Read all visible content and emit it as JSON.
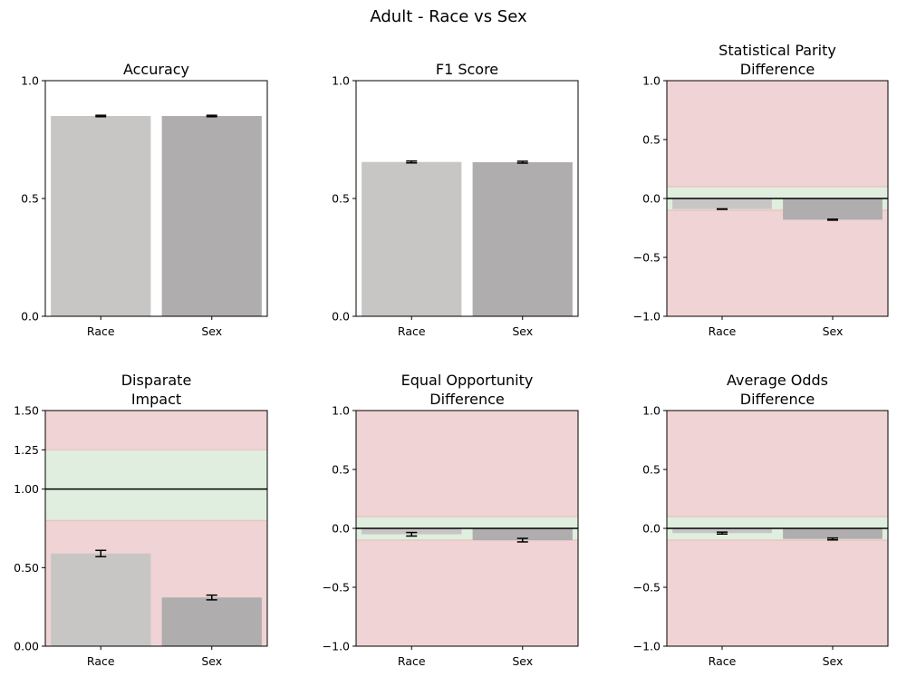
{
  "figure": {
    "title": "Adult - Race vs Sex"
  },
  "colors": {
    "bar_race": "#c8c6c4",
    "bar_sex": "#afadad",
    "fair_band": "#dfeede",
    "unfair_band": "#f0d3d4",
    "band_edge": "#e6c2bd"
  },
  "chart_data": [
    {
      "type": "bar",
      "title": "Accuracy",
      "categories": [
        "Race",
        "Sex"
      ],
      "values": [
        0.85,
        0.85
      ],
      "errors": [
        0.003,
        0.003
      ],
      "ylim": [
        0,
        1
      ],
      "yticks": [
        0,
        0.5,
        1
      ],
      "ytick_labels": [
        "0.0",
        "0.5",
        "1.0"
      ],
      "fair_band": null,
      "reference_line": null
    },
    {
      "type": "bar",
      "title": "F1 Score",
      "categories": [
        "Race",
        "Sex"
      ],
      "values": [
        0.655,
        0.654
      ],
      "errors": [
        0.004,
        0.004
      ],
      "ylim": [
        0,
        1
      ],
      "yticks": [
        0,
        0.5,
        1
      ],
      "ytick_labels": [
        "0.0",
        "0.5",
        "1.0"
      ],
      "fair_band": null,
      "reference_line": null
    },
    {
      "type": "bar",
      "title": "Statistical Parity\nDifference",
      "categories": [
        "Race",
        "Sex"
      ],
      "values": [
        -0.09,
        -0.18
      ],
      "errors": [
        0.002,
        0.004
      ],
      "ylim": [
        -1,
        1
      ],
      "yticks": [
        -1,
        -0.5,
        0,
        0.5,
        1
      ],
      "ytick_labels": [
        "−1.0",
        "−0.5",
        "0.0",
        "0.5",
        "1.0"
      ],
      "fair_band": [
        -0.1,
        0.1
      ],
      "reference_line": 0
    },
    {
      "type": "bar",
      "title": "Disparate\nImpact",
      "categories": [
        "Race",
        "Sex"
      ],
      "values": [
        0.59,
        0.31
      ],
      "errors": [
        0.02,
        0.015
      ],
      "ylim": [
        0,
        1.5
      ],
      "yticks": [
        0,
        0.5,
        1,
        1.25,
        1.5
      ],
      "ytick_labels": [
        "0.00",
        "0.50",
        "1.00",
        "1.25",
        "1.50"
      ],
      "fair_band": [
        0.8,
        1.25
      ],
      "reference_line": 1
    },
    {
      "type": "bar",
      "title": "Equal Opportunity\nDifference",
      "categories": [
        "Race",
        "Sex"
      ],
      "values": [
        -0.05,
        -0.1
      ],
      "errors": [
        0.015,
        0.015
      ],
      "ylim": [
        -1,
        1
      ],
      "yticks": [
        -1,
        -0.5,
        0,
        0.5,
        1
      ],
      "ytick_labels": [
        "−1.0",
        "−0.5",
        "0.0",
        "0.5",
        "1.0"
      ],
      "fair_band": [
        -0.1,
        0.1
      ],
      "reference_line": 0
    },
    {
      "type": "bar",
      "title": "Average Odds\nDifference",
      "categories": [
        "Race",
        "Sex"
      ],
      "values": [
        -0.04,
        -0.09
      ],
      "errors": [
        0.008,
        0.008
      ],
      "ylim": [
        -1,
        1
      ],
      "yticks": [
        -1,
        -0.5,
        0,
        0.5,
        1
      ],
      "ytick_labels": [
        "−1.0",
        "−0.5",
        "0.0",
        "0.5",
        "1.0"
      ],
      "fair_band": [
        -0.1,
        0.1
      ],
      "reference_line": 0
    }
  ]
}
